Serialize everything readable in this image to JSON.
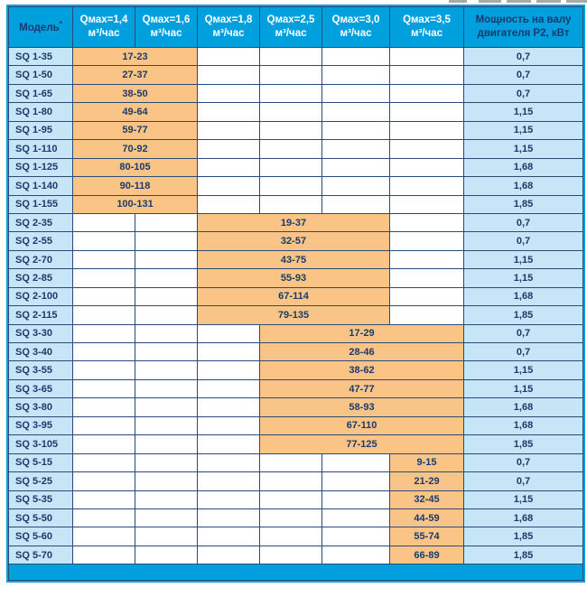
{
  "colors": {
    "header_cyan": "#00A0DF",
    "light_blue": "#c6e5f7",
    "range_orange": "#f9c486",
    "text_navy": "#1b3a6b",
    "grid_line": "#2b4a77"
  },
  "table": {
    "header": {
      "model": {
        "label": "Модель",
        "note": "*"
      },
      "qmax_columns": [
        {
          "line1": "Qмах=1,4",
          "line2": "м³/час"
        },
        {
          "line1": "Qмах=1,6",
          "line2": "м³/час"
        },
        {
          "line1": "Qмах=1,8",
          "line2": "м³/час"
        },
        {
          "line1": "Qмах=2,5",
          "line2": "м³/час"
        },
        {
          "line1": "Qмах=3,0",
          "line2": "м³/час"
        },
        {
          "line1": "Qмах=3,5",
          "line2": "м³/час"
        }
      ],
      "power": {
        "line1": "Мощность на валу",
        "line2": "двигателя P2, кВт"
      }
    },
    "groups": [
      {
        "id": "sq1",
        "lead_blank": 0,
        "range_colspan": 2,
        "trail_blank": 4,
        "rows": [
          {
            "model": "SQ 1-35",
            "qmax_range": "17-23",
            "power_kw": "0,7"
          },
          {
            "model": "SQ 1-50",
            "qmax_range": "27-37",
            "power_kw": "0,7"
          },
          {
            "model": "SQ 1-65",
            "qmax_range": "38-50",
            "power_kw": "0,7"
          },
          {
            "model": "SQ 1-80",
            "qmax_range": "49-64",
            "power_kw": "1,15"
          },
          {
            "model": "SQ 1-95",
            "qmax_range": "59-77",
            "power_kw": "1,15"
          },
          {
            "model": "SQ 1-110",
            "qmax_range": "70-92",
            "power_kw": "1,15"
          },
          {
            "model": "SQ 1-125",
            "qmax_range": "80-105",
            "power_kw": "1,68"
          },
          {
            "model": "SQ 1-140",
            "qmax_range": "90-118",
            "power_kw": "1,68"
          },
          {
            "model": "SQ 1-155",
            "qmax_range": "100-131",
            "power_kw": "1,85"
          }
        ]
      },
      {
        "id": "sq2",
        "lead_blank": 2,
        "range_colspan": 3,
        "trail_blank": 1,
        "rows": [
          {
            "model": "SQ 2-35",
            "qmax_range": "19-37",
            "power_kw": "0,7"
          },
          {
            "model": "SQ 2-55",
            "qmax_range": "32-57",
            "power_kw": "0,7"
          },
          {
            "model": "SQ 2-70",
            "qmax_range": "43-75",
            "power_kw": "1,15"
          },
          {
            "model": "SQ 2-85",
            "qmax_range": "55-93",
            "power_kw": "1,15"
          },
          {
            "model": "SQ 2-100",
            "qmax_range": "67-114",
            "power_kw": "1,68"
          },
          {
            "model": "SQ 2-115",
            "qmax_range": "79-135",
            "power_kw": "1,85"
          }
        ]
      },
      {
        "id": "sq3",
        "lead_blank": 3,
        "range_colspan": 3,
        "trail_blank": 0,
        "rows": [
          {
            "model": "SQ 3-30",
            "qmax_range": "17-29",
            "power_kw": "0,7"
          },
          {
            "model": "SQ 3-40",
            "qmax_range": "28-46",
            "power_kw": "0,7"
          },
          {
            "model": "SQ 3-55",
            "qmax_range": "38-62",
            "power_kw": "1,15"
          },
          {
            "model": "SQ 3-65",
            "qmax_range": "47-77",
            "power_kw": "1,15"
          },
          {
            "model": "SQ 3-80",
            "qmax_range": "58-93",
            "power_kw": "1,68"
          },
          {
            "model": "SQ 3-95",
            "qmax_range": "67-110",
            "power_kw": "1,68"
          },
          {
            "model": "SQ 3-105",
            "qmax_range": "77-125",
            "power_kw": "1,85"
          }
        ]
      },
      {
        "id": "sq5",
        "lead_blank": 5,
        "range_colspan": 1,
        "trail_blank": 0,
        "rows": [
          {
            "model": "SQ 5-15",
            "qmax_range": "9-15",
            "power_kw": "0,7"
          },
          {
            "model": "SQ 5-25",
            "qmax_range": "21-29",
            "power_kw": "0,7"
          },
          {
            "model": "SQ 5-35",
            "qmax_range": "32-45",
            "power_kw": "1,15"
          },
          {
            "model": "SQ 5-50",
            "qmax_range": "44-59",
            "power_kw": "1,68"
          },
          {
            "model": "SQ 5-60",
            "qmax_range": "55-74",
            "power_kw": "1,85"
          },
          {
            "model": "SQ 5-70",
            "qmax_range": "66-89",
            "power_kw": "1,85"
          }
        ]
      }
    ],
    "footer": {
      "label": ""
    }
  }
}
